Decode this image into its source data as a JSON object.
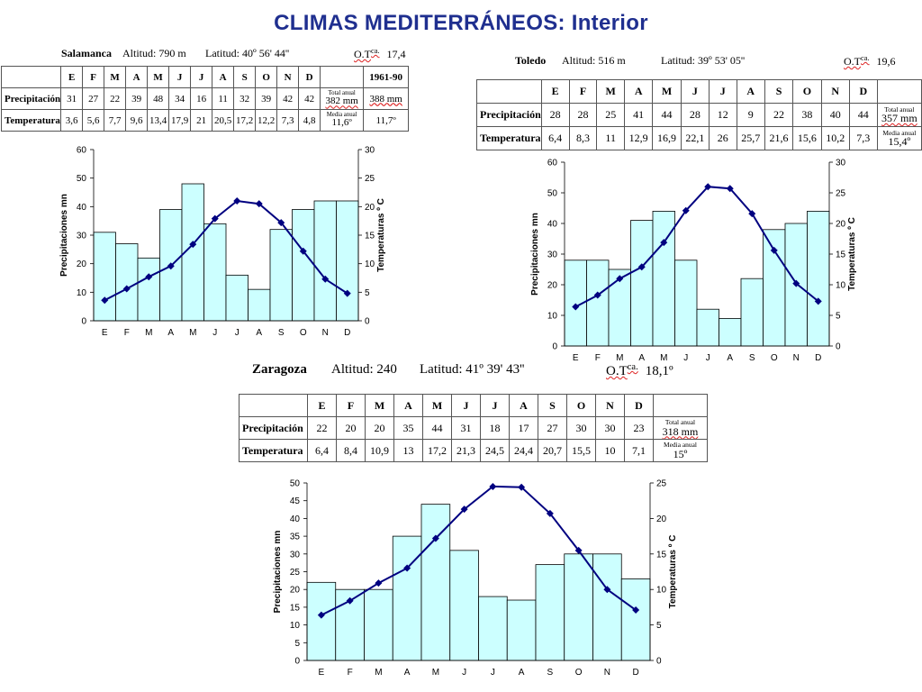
{
  "title": "CLIMAS MEDITERRÁNEOS: Interior",
  "months": [
    "E",
    "F",
    "M",
    "A",
    "M",
    "J",
    "J",
    "A",
    "S",
    "O",
    "N",
    "D"
  ],
  "row_labels": {
    "precip": "Precipitación",
    "temp": "Temperatura"
  },
  "axis_titles": {
    "left": "Precipitaciones mn",
    "right": "Temperaturas º C"
  },
  "stations": [
    {
      "id": "salamanca",
      "name": "Salamanca",
      "altitude": "Altitud: 790 m",
      "latitude": "Latitud: 40º 56' 44''",
      "otca_label": "O.T",
      "otca_sup": "ca.",
      "otca_value": "17,4",
      "period": "1961-90",
      "precip_cells": [
        "31",
        "27",
        "22",
        "39",
        "48",
        "34",
        "16",
        "11",
        "32",
        "39",
        "42",
        "42"
      ],
      "temp_cells": [
        "3,6",
        "5,6",
        "7,7",
        "9,6",
        "13,4",
        "17,9",
        "21",
        "20,5",
        "17,2",
        "12,2",
        "7,3",
        "4,8"
      ],
      "total_label": "Total anual",
      "total_value": "382 mm",
      "total_extra": "388 mm",
      "mean_label": "Media anual",
      "mean_value": "11,6º",
      "mean_extra": "11,7º"
    },
    {
      "id": "toledo",
      "name": "Toledo",
      "altitude": "Altitud: 516 m",
      "latitude": "Latitud: 39º 53' 05''",
      "otca_label": "O.T",
      "otca_sup": "ca.",
      "otca_value": "19,6",
      "precip_cells": [
        "28",
        "28",
        "25",
        "41",
        "44",
        "28",
        "12",
        "9",
        "22",
        "38",
        "40",
        "44"
      ],
      "temp_cells": [
        "6,4",
        "8,3",
        "11",
        "12,9",
        "16,9",
        "22,1",
        "26",
        "25,7",
        "21,6",
        "15,6",
        "10,2",
        "7,3"
      ],
      "total_label": "Total anual",
      "total_value": "357 mm",
      "mean_label": "Media anual",
      "mean_value": "15,4º"
    },
    {
      "id": "zaragoza",
      "name": "Zaragoza",
      "altitude": "Altitud: 240",
      "latitude": "Latitud: 41º 39' 43''",
      "otca_label": "O.T",
      "otca_sup": "ca.",
      "otca_value": "18,1º",
      "precip_cells": [
        "22",
        "20",
        "20",
        "35",
        "44",
        "31",
        "18",
        "17",
        "27",
        "30",
        "30",
        "23"
      ],
      "temp_cells": [
        "6,4",
        "8,4",
        "10,9",
        "13",
        "17,2",
        "21,3",
        "24,5",
        "24,4",
        "20,7",
        "15,5",
        "10",
        "7,1"
      ],
      "total_label": "Total anual",
      "total_value": "318 mm",
      "mean_label": "Media anual",
      "mean_value": "15º"
    }
  ],
  "chart_data": [
    {
      "type": "bar+line",
      "station": "Salamanca",
      "categories": [
        "E",
        "F",
        "M",
        "A",
        "M",
        "J",
        "J",
        "A",
        "S",
        "O",
        "N",
        "D"
      ],
      "series": [
        {
          "values": [
            31,
            27,
            22,
            39,
            48,
            34,
            16,
            11,
            32,
            39,
            42,
            42
          ],
          "axis": "left"
        },
        {
          "values": [
            3.6,
            5.6,
            7.7,
            9.6,
            13.4,
            17.9,
            21,
            20.5,
            17.2,
            12.2,
            7.3,
            4.8
          ],
          "axis": "right"
        }
      ],
      "ylabel": "Precipitaciones mn",
      "y2label": "Temperaturas º C",
      "ylim": [
        0,
        60
      ],
      "y2lim": [
        0,
        30
      ],
      "yticks": [
        0,
        10,
        20,
        30,
        40,
        50,
        60
      ],
      "y2ticks": [
        0,
        5,
        10,
        15,
        20,
        25,
        30
      ],
      "colors": {
        "bars": "#ccffff",
        "line": "#000080"
      }
    },
    {
      "type": "bar+line",
      "station": "Toledo",
      "categories": [
        "E",
        "F",
        "M",
        "A",
        "M",
        "J",
        "J",
        "A",
        "S",
        "O",
        "N",
        "D"
      ],
      "series": [
        {
          "values": [
            28,
            28,
            25,
            41,
            44,
            28,
            12,
            9,
            22,
            38,
            40,
            44
          ],
          "axis": "left"
        },
        {
          "values": [
            6.4,
            8.3,
            11,
            12.9,
            16.9,
            22.1,
            26,
            25.7,
            21.6,
            15.6,
            10.2,
            7.3
          ],
          "axis": "right"
        }
      ],
      "ylabel": "Precipitaciones mn",
      "y2label": "Temperaturas º C",
      "ylim": [
        0,
        60
      ],
      "y2lim": [
        0,
        30
      ],
      "yticks": [
        0,
        10,
        20,
        30,
        40,
        50,
        60
      ],
      "y2ticks": [
        0,
        5,
        10,
        15,
        20,
        25,
        30
      ],
      "colors": {
        "bars": "#ccffff",
        "line": "#000080"
      }
    },
    {
      "type": "bar+line",
      "station": "Zaragoza",
      "categories": [
        "E",
        "F",
        "M",
        "A",
        "M",
        "J",
        "J",
        "A",
        "S",
        "O",
        "N",
        "D"
      ],
      "series": [
        {
          "values": [
            22,
            20,
            20,
            35,
            44,
            31,
            18,
            17,
            27,
            30,
            30,
            23
          ],
          "axis": "left"
        },
        {
          "values": [
            6.4,
            8.4,
            10.9,
            13,
            17.2,
            21.3,
            24.5,
            24.4,
            20.7,
            15.5,
            10,
            7.1
          ],
          "axis": "right"
        }
      ],
      "ylabel": "Precipitaciones mn",
      "y2label": "Temperaturas º C",
      "ylim": [
        0,
        50
      ],
      "y2lim": [
        0,
        25
      ],
      "yticks": [
        0,
        5,
        10,
        15,
        20,
        25,
        30,
        35,
        40,
        45,
        50
      ],
      "y2ticks": [
        0,
        5,
        10,
        15,
        20,
        25
      ],
      "colors": {
        "bars": "#ccffff",
        "line": "#000080"
      }
    }
  ]
}
